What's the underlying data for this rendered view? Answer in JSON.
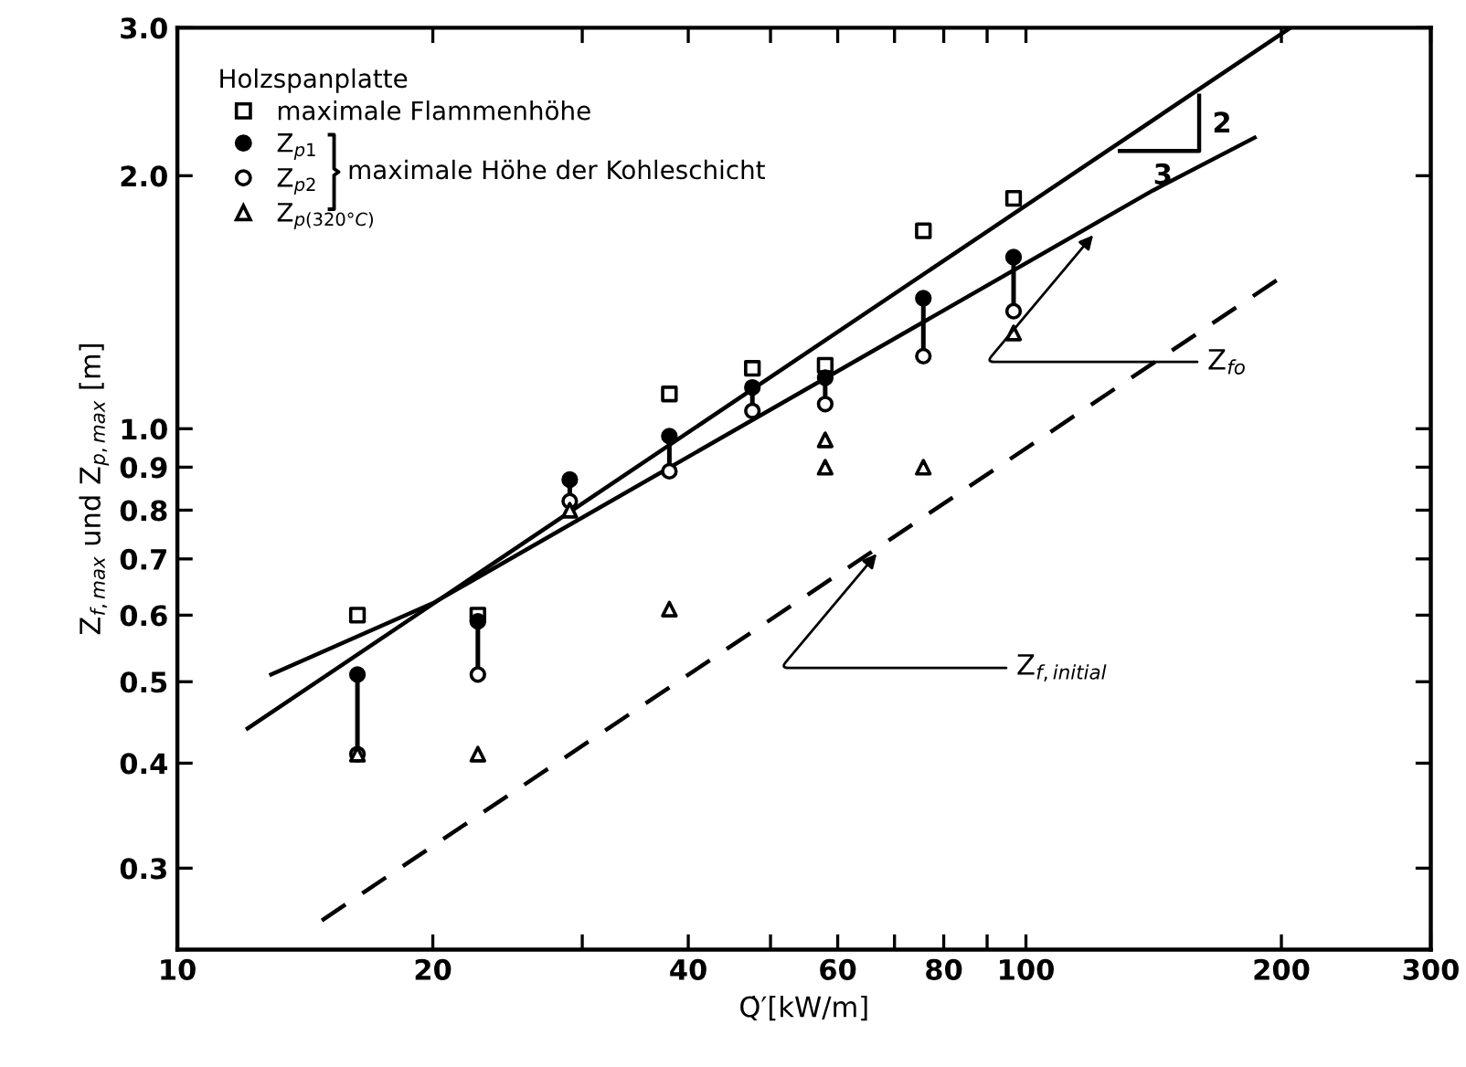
{
  "chart_data": {
    "type": "scatter",
    "xlabel": "Q̇′[kW/m]",
    "ylabel": "Z$_{f,max}$ und Z$_{p,max}$ [m]",
    "legend_title": "Holzspanplatte",
    "log": "xy",
    "legend": "top left",
    "grid": false,
    "xlim": [
      10,
      300
    ],
    "xticks": [
      10,
      20,
      {
        "value": 30,
        "label": null
      },
      40,
      {
        "value": 50,
        "label": null
      },
      60,
      {
        "value": 70,
        "label": null
      },
      80,
      {
        "value": 90,
        "label": null
      },
      100,
      200,
      300
    ],
    "ylim": [
      0.24,
      3.0
    ],
    "yticks": [
      0.3,
      0.4,
      0.5,
      0.6,
      0.7,
      0.8,
      0.9,
      {
        "value": 1.0,
        "label": "1.0"
      },
      {
        "value": 2.0,
        "label": "2.0"
      },
      {
        "value": 3.0,
        "label": "3.0"
      }
    ],
    "series": [
      {
        "name": "maximale Flammenhöhe",
        "marker": "square",
        "color": "#ffffff",
        "x": [
          16.3,
          22.6,
          38,
          47.6,
          58,
          75.7,
          96.7
        ],
        "values": [
          0.6,
          0.6,
          1.1,
          1.18,
          1.19,
          1.72,
          1.88
        ]
      },
      {
        "name": "Z$_{p1}$",
        "marker": "circle",
        "color": "#000000",
        "x": [
          16.3,
          22.6,
          29,
          38,
          47.6,
          58,
          75.7,
          96.7
        ],
        "values": [
          0.51,
          0.59,
          0.87,
          0.98,
          1.12,
          1.15,
          1.43,
          1.6
        ],
        "errors": [
          [
            0.41,
            0.51
          ],
          [
            0.51,
            0.59
          ],
          [
            0.82,
            0.87
          ],
          [
            0.89,
            0.98
          ],
          [
            1.05,
            1.12
          ],
          [
            1.07,
            1.15
          ],
          [
            1.22,
            1.43
          ],
          [
            1.38,
            1.6
          ]
        ]
      },
      {
        "name": "Z$_{p2}$",
        "marker": "circle",
        "color": "#ffffff",
        "x": [
          16.3,
          22.6,
          29,
          38,
          47.6,
          58,
          75.7,
          96.7
        ],
        "values": [
          0.41,
          0.51,
          0.82,
          0.89,
          1.05,
          1.07,
          1.22,
          1.38
        ]
      },
      {
        "name": "Z$_{p(320°C)}$",
        "marker": "triangle",
        "color": "#ffffff",
        "x": [
          16.3,
          22.6,
          29,
          38,
          58,
          58,
          75.7,
          96.7
        ],
        "values": [
          0.41,
          0.41,
          0.8,
          0.61,
          0.97,
          0.9,
          0.9,
          1.3
        ]
      },
      {
        "type": "line",
        "line_style": "solid",
        "color": "#000000",
        "x": [
          12.1,
          205
        ],
        "values": [
          0.44,
          3.0
        ]
      },
      {
        "type": "line",
        "line_style": "solid",
        "color": "#000000",
        "x": [
          12.9,
          20,
          141,
          186
        ],
        "values": [
          0.51,
          0.62,
          1.92,
          2.22
        ]
      },
      {
        "type": "line",
        "line_style": "dashed",
        "color": "#000000",
        "x": [
          14.8,
          201
        ],
        "values": [
          0.26,
          1.52
        ]
      },
      {
        "type": "line",
        "line_style": "solid",
        "color": "#000000",
        "x": [
          129,
          160,
          160
        ],
        "values": [
          2.14,
          2.14,
          2.49
        ]
      }
    ],
    "annotations": [
      "maximale Höhe der Kohleschicht",
      {
        "text": "Z$_{fo}$",
        "x": 120,
        "y": 1.7
      },
      {
        "text": "Z$_{f,initial}$",
        "x": 66.7,
        "y": 0.71
      },
      {
        "text": "2",
        "x": 160,
        "y": 2.3
      },
      {
        "text": "3",
        "x": 145,
        "y": 2.14
      }
    ]
  }
}
